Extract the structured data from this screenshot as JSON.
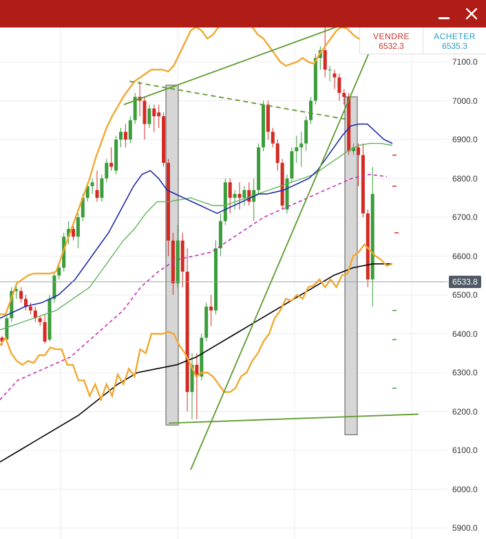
{
  "window": {
    "minimize_label": "minimize",
    "close_label": "close"
  },
  "quote": {
    "sell_label": "VENDRE",
    "sell_price": "6532.3",
    "buy_label": "ACHETER",
    "buy_price": "6535.3"
  },
  "current_price_tag": "6533.8",
  "y_axis_ticks": [
    "7100.0",
    "7000.0",
    "6900.0",
    "6800.0",
    "6700.0",
    "6600.0",
    "6500.0",
    "6400.0",
    "6300.0",
    "6200.0",
    "6100.0",
    "6000.0",
    "5900.0"
  ],
  "colors": {
    "header": "#b01c16",
    "up_candle": "#3a9c3a",
    "down_candle": "#d42a24",
    "bollinger": "#f0a830",
    "ma_fast": "#1f2aa8",
    "ma_medium": "#5bb55b",
    "ma_dashed": "#c72bb8",
    "ma_long": "#000000",
    "trendline": "#5a9a2a"
  },
  "chart_data": {
    "type": "candlestick",
    "ylim": [
      5885,
      7195
    ],
    "candles": [
      [
        6390,
        6395,
        6370,
        6380
      ],
      [
        6385,
        6445,
        6380,
        6440
      ],
      [
        6440,
        6520,
        6430,
        6510
      ],
      [
        6510,
        6525,
        6490,
        6515
      ],
      [
        6510,
        6520,
        6480,
        6490
      ],
      [
        6490,
        6500,
        6460,
        6470
      ],
      [
        6470,
        6480,
        6450,
        6460
      ],
      [
        6460,
        6470,
        6430,
        6440
      ],
      [
        6440,
        6445,
        6420,
        6430
      ],
      [
        6430,
        6450,
        6375,
        6380
      ],
      [
        6385,
        6500,
        6380,
        6490
      ],
      [
        6490,
        6560,
        6480,
        6550
      ],
      [
        6550,
        6580,
        6540,
        6570
      ],
      [
        6570,
        6660,
        6560,
        6650
      ],
      [
        6650,
        6690,
        6630,
        6670
      ],
      [
        6670,
        6680,
        6640,
        6650
      ],
      [
        6650,
        6710,
        6620,
        6700
      ],
      [
        6700,
        6760,
        6690,
        6750
      ],
      [
        6750,
        6790,
        6740,
        6780
      ],
      [
        6780,
        6800,
        6760,
        6790
      ],
      [
        6770,
        6820,
        6740,
        6750
      ],
      [
        6750,
        6810,
        6740,
        6800
      ],
      [
        6800,
        6850,
        6790,
        6840
      ],
      [
        6840,
        6880,
        6820,
        6830
      ],
      [
        6820,
        6910,
        6810,
        6900
      ],
      [
        6900,
        6930,
        6880,
        6920
      ],
      [
        6920,
        6940,
        6880,
        6900
      ],
      [
        6900,
        6960,
        6890,
        6950
      ],
      [
        6950,
        7020,
        6940,
        7010
      ],
      [
        7010,
        7050,
        6960,
        7000
      ],
      [
        7000,
        7010,
        6900,
        6940
      ],
      [
        6940,
        6990,
        6930,
        6980
      ],
      [
        6980,
        6990,
        6920,
        6960
      ],
      [
        6970,
        6990,
        6930,
        6960
      ],
      [
        6960,
        6970,
        6830,
        6840
      ],
      [
        6840,
        6850,
        6600,
        6640
      ],
      [
        6640,
        6660,
        6500,
        6530
      ],
      [
        6530,
        6680,
        6520,
        6640
      ],
      [
        6640,
        6660,
        6520,
        6560
      ],
      [
        6560,
        6620,
        6200,
        6250
      ],
      [
        6250,
        6350,
        6180,
        6320
      ],
      [
        6320,
        6350,
        6180,
        6290
      ],
      [
        6290,
        6400,
        6280,
        6390
      ],
      [
        6390,
        6480,
        6380,
        6470
      ],
      [
        6470,
        6500,
        6420,
        6460
      ],
      [
        6460,
        6640,
        6450,
        6620
      ],
      [
        6620,
        6710,
        6600,
        6690
      ],
      [
        6690,
        6800,
        6680,
        6790
      ],
      [
        6790,
        6800,
        6710,
        6750
      ],
      [
        6750,
        6770,
        6720,
        6760
      ],
      [
        6760,
        6790,
        6720,
        6750
      ],
      [
        6750,
        6780,
        6730,
        6770
      ],
      [
        6770,
        6790,
        6730,
        6740
      ],
      [
        6740,
        6800,
        6690,
        6770
      ],
      [
        6770,
        6890,
        6760,
        6880
      ],
      [
        6880,
        7000,
        6870,
        6990
      ],
      [
        6990,
        7000,
        6900,
        6920
      ],
      [
        6920,
        6930,
        6880,
        6890
      ],
      [
        6890,
        6900,
        6820,
        6840
      ],
      [
        6840,
        6850,
        6720,
        6730
      ],
      [
        6720,
        6810,
        6710,
        6800
      ],
      [
        6800,
        6880,
        6790,
        6870
      ],
      [
        6870,
        6910,
        6840,
        6880
      ],
      [
        6880,
        6920,
        6830,
        6890
      ],
      [
        6890,
        6960,
        6870,
        6950
      ],
      [
        6950,
        7010,
        6940,
        7000
      ],
      [
        7000,
        7120,
        6990,
        7110
      ],
      [
        7110,
        7140,
        7080,
        7130
      ],
      [
        7130,
        7190,
        7060,
        7080
      ],
      [
        7080,
        7090,
        7050,
        7080
      ],
      [
        7070,
        7080,
        7030,
        7060
      ],
      [
        7060,
        7070,
        7000,
        7020
      ],
      [
        7020,
        7030,
        6990,
        7010
      ],
      [
        7010,
        7020,
        6860,
        6870
      ],
      [
        6870,
        6890,
        6860,
        6880
      ],
      [
        6880,
        6890,
        6780,
        6860
      ],
      [
        6860,
        6890,
        6700,
        6710
      ],
      [
        6710,
        6720,
        6520,
        6540
      ],
      [
        6540,
        6830,
        6470,
        6760
      ]
    ],
    "bollinger_upper": [
      6450,
      6450,
      6490,
      6530,
      6540,
      6550,
      6555,
      6555,
      6555,
      6555,
      6560,
      6600,
      6640,
      6680,
      6720,
      6760,
      6800,
      6850,
      6890,
      6930,
      6960,
      6985,
      7010,
      7030,
      7050,
      7060,
      7070,
      7080,
      7080,
      7080,
      7075,
      7090,
      7120,
      7150,
      7180,
      7190,
      7180,
      7160,
      7170,
      7190,
      7210,
      7230,
      7220,
      7210,
      7200,
      7190,
      7170,
      7160,
      7140,
      7120,
      7100,
      7090,
      7095,
      7100,
      7110,
      7100,
      7095,
      7120,
      7140,
      7160,
      7180,
      7190,
      7185,
      7170,
      7160,
      7150,
      7165,
      7180,
      7190,
      7195,
      7190
    ],
    "ma_fast": [
      6440,
      6450,
      6460,
      6470,
      6475,
      6480,
      6490,
      6500,
      6520,
      6540,
      6570,
      6600,
      6630,
      6660,
      6700,
      6740,
      6780,
      6810,
      6820,
      6800,
      6770,
      6760,
      6750,
      6740,
      6730,
      6720,
      6710,
      6720,
      6730,
      6740,
      6750,
      6760,
      6760,
      6765,
      6770,
      6780,
      6790,
      6800,
      6820,
      6850,
      6880,
      6910,
      6935,
      6940,
      6940,
      6920,
      6900,
      6890
    ],
    "ma_medium": [
      6410,
      6420,
      6430,
      6440,
      6450,
      6460,
      6480,
      6500,
      6520,
      6560,
      6600,
      6640,
      6670,
      6710,
      6740,
      6740,
      6745,
      6750,
      6740,
      6730,
      6730,
      6740,
      6750,
      6760,
      6770,
      6780,
      6790,
      6800,
      6810,
      6830,
      6850,
      6870,
      6885,
      6890,
      6890,
      6885
    ],
    "ma_dashed": [
      6230,
      6280,
      6300,
      6320,
      6340,
      6380,
      6420,
      6460,
      6520,
      6560,
      6590,
      6600,
      6610,
      6640,
      6670,
      6700,
      6720,
      6740,
      6760,
      6780,
      6800,
      6810,
      6805
    ],
    "ma_long": [
      6070,
      6100,
      6130,
      6160,
      6190,
      6230,
      6270,
      6300,
      6310,
      6320,
      6340,
      6370,
      6400,
      6430,
      6460,
      6490,
      6520,
      6550,
      6570,
      6580,
      6580
    ],
    "highlight_boxes": [
      {
        "x_from": 241,
        "x_to": 259,
        "y_top": 7040,
        "y_bottom": 6165
      },
      {
        "x_from": 501,
        "x_to": 519,
        "y_top": 7010,
        "y_bottom": 6140
      }
    ]
  }
}
